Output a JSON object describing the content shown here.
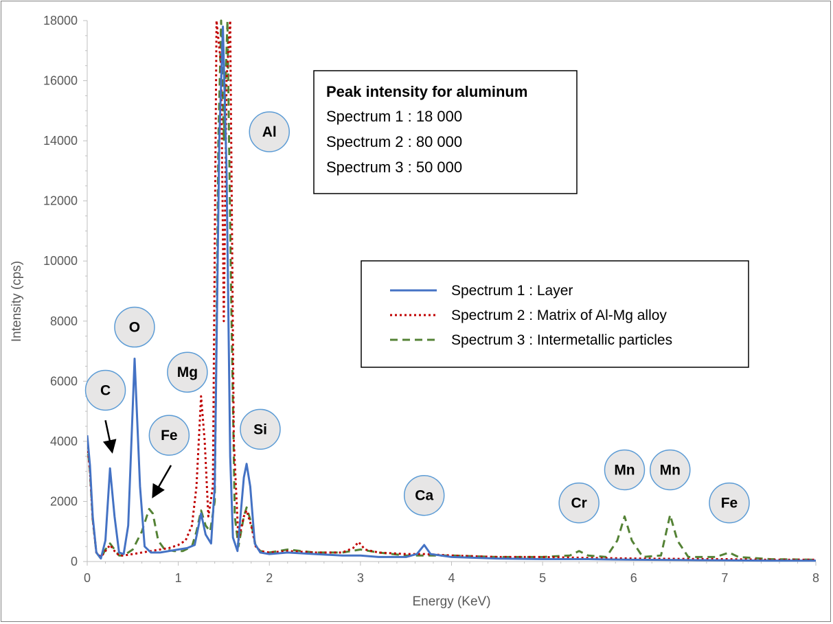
{
  "chart_data": {
    "type": "line",
    "title": "",
    "xlabel": "Energy (KeV)",
    "ylabel": "Intensity (cps)",
    "xlim": [
      0,
      8
    ],
    "ylim": [
      0,
      18000
    ],
    "x_ticks": [
      "0",
      "1",
      "2",
      "3",
      "4",
      "5",
      "6",
      "7",
      "8"
    ],
    "y_ticks": [
      "0",
      "2000",
      "4000",
      "6000",
      "8000",
      "10000",
      "12000",
      "14000",
      "16000",
      "18000"
    ],
    "grid": false,
    "legend_position": "right",
    "series": [
      {
        "name": "Spectrum 1 : Layer",
        "color": "#4472C4",
        "style": "solid",
        "points": [
          [
            0,
            4200
          ],
          [
            0.03,
            3200
          ],
          [
            0.06,
            1500
          ],
          [
            0.1,
            300
          ],
          [
            0.15,
            100
          ],
          [
            0.2,
            700
          ],
          [
            0.25,
            3100
          ],
          [
            0.3,
            1500
          ],
          [
            0.35,
            300
          ],
          [
            0.4,
            250
          ],
          [
            0.45,
            1200
          ],
          [
            0.52,
            6750
          ],
          [
            0.58,
            2500
          ],
          [
            0.63,
            500
          ],
          [
            0.7,
            300
          ],
          [
            0.8,
            300
          ],
          [
            0.9,
            350
          ],
          [
            1.0,
            400
          ],
          [
            1.1,
            450
          ],
          [
            1.18,
            550
          ],
          [
            1.25,
            1600
          ],
          [
            1.3,
            900
          ],
          [
            1.36,
            600
          ],
          [
            1.4,
            2500
          ],
          [
            1.45,
            14000
          ],
          [
            1.49,
            17800
          ],
          [
            1.53,
            13000
          ],
          [
            1.57,
            3500
          ],
          [
            1.6,
            800
          ],
          [
            1.65,
            350
          ],
          [
            1.72,
            2800
          ],
          [
            1.75,
            3250
          ],
          [
            1.79,
            2500
          ],
          [
            1.84,
            600
          ],
          [
            1.9,
            300
          ],
          [
            2.0,
            250
          ],
          [
            2.2,
            300
          ],
          [
            2.5,
            250
          ],
          [
            2.8,
            200
          ],
          [
            3.0,
            200
          ],
          [
            3.2,
            150
          ],
          [
            3.5,
            150
          ],
          [
            3.62,
            250
          ],
          [
            3.7,
            550
          ],
          [
            3.77,
            250
          ],
          [
            4.0,
            150
          ],
          [
            4.5,
            100
          ],
          [
            5.0,
            80
          ],
          [
            5.5,
            80
          ],
          [
            6.0,
            60
          ],
          [
            6.5,
            50
          ],
          [
            7.0,
            40
          ],
          [
            7.5,
            30
          ],
          [
            8.0,
            30
          ]
        ]
      },
      {
        "name": "Spectrum 2 : Matrix of Al-Mg alloy",
        "color": "#C00000",
        "style": "dotted",
        "points": [
          [
            0,
            4000
          ],
          [
            0.03,
            3000
          ],
          [
            0.06,
            1400
          ],
          [
            0.1,
            300
          ],
          [
            0.15,
            150
          ],
          [
            0.2,
            350
          ],
          [
            0.25,
            550
          ],
          [
            0.3,
            350
          ],
          [
            0.35,
            200
          ],
          [
            0.4,
            200
          ],
          [
            0.5,
            250
          ],
          [
            0.6,
            300
          ],
          [
            0.7,
            350
          ],
          [
            0.8,
            400
          ],
          [
            0.9,
            450
          ],
          [
            1.0,
            550
          ],
          [
            1.08,
            700
          ],
          [
            1.15,
            1200
          ],
          [
            1.2,
            2500
          ],
          [
            1.25,
            5500
          ],
          [
            1.29,
            4000
          ],
          [
            1.33,
            1500
          ],
          [
            1.38,
            2500
          ],
          [
            1.42,
            18000
          ],
          [
            1.47,
            16500
          ],
          [
            1.5,
            8000
          ],
          [
            1.53,
            16000
          ],
          [
            1.57,
            18000
          ],
          [
            1.61,
            4000
          ],
          [
            1.66,
            700
          ],
          [
            1.72,
            1500
          ],
          [
            1.75,
            1700
          ],
          [
            1.8,
            1200
          ],
          [
            1.85,
            500
          ],
          [
            1.9,
            350
          ],
          [
            2.0,
            300
          ],
          [
            2.2,
            350
          ],
          [
            2.5,
            300
          ],
          [
            2.8,
            300
          ],
          [
            2.92,
            450
          ],
          [
            2.98,
            650
          ],
          [
            3.05,
            400
          ],
          [
            3.2,
            300
          ],
          [
            3.5,
            250
          ],
          [
            3.7,
            250
          ],
          [
            4.0,
            200
          ],
          [
            4.5,
            150
          ],
          [
            5.0,
            150
          ],
          [
            5.5,
            120
          ],
          [
            6.0,
            100
          ],
          [
            6.5,
            90
          ],
          [
            7.0,
            80
          ],
          [
            7.5,
            60
          ],
          [
            8.0,
            60
          ]
        ]
      },
      {
        "name": "Spectrum 3 : Intermetallic particles",
        "color": "#548235",
        "style": "dashed",
        "points": [
          [
            0,
            4000
          ],
          [
            0.03,
            3000
          ],
          [
            0.06,
            1400
          ],
          [
            0.1,
            300
          ],
          [
            0.15,
            100
          ],
          [
            0.2,
            400
          ],
          [
            0.25,
            600
          ],
          [
            0.3,
            400
          ],
          [
            0.35,
            200
          ],
          [
            0.4,
            200
          ],
          [
            0.5,
            400
          ],
          [
            0.6,
            1000
          ],
          [
            0.68,
            1750
          ],
          [
            0.72,
            1600
          ],
          [
            0.78,
            700
          ],
          [
            0.85,
            400
          ],
          [
            0.95,
            350
          ],
          [
            1.05,
            350
          ],
          [
            1.15,
            500
          ],
          [
            1.2,
            1000
          ],
          [
            1.25,
            1700
          ],
          [
            1.3,
            1200
          ],
          [
            1.35,
            1000
          ],
          [
            1.4,
            2000
          ],
          [
            1.44,
            14000
          ],
          [
            1.47,
            18000
          ],
          [
            1.5,
            14000
          ],
          [
            1.54,
            18000
          ],
          [
            1.58,
            9000
          ],
          [
            1.62,
            1500
          ],
          [
            1.66,
            500
          ],
          [
            1.72,
            1500
          ],
          [
            1.75,
            1800
          ],
          [
            1.8,
            1300
          ],
          [
            1.85,
            500
          ],
          [
            1.9,
            350
          ],
          [
            2.0,
            300
          ],
          [
            2.2,
            400
          ],
          [
            2.5,
            300
          ],
          [
            2.8,
            300
          ],
          [
            3.0,
            400
          ],
          [
            3.2,
            300
          ],
          [
            3.5,
            200
          ],
          [
            4.0,
            200
          ],
          [
            4.5,
            150
          ],
          [
            5.0,
            150
          ],
          [
            5.3,
            200
          ],
          [
            5.4,
            350
          ],
          [
            5.5,
            200
          ],
          [
            5.7,
            150
          ],
          [
            5.82,
            700
          ],
          [
            5.9,
            1500
          ],
          [
            5.98,
            700
          ],
          [
            6.1,
            150
          ],
          [
            6.3,
            200
          ],
          [
            6.4,
            1550
          ],
          [
            6.48,
            700
          ],
          [
            6.6,
            150
          ],
          [
            6.9,
            150
          ],
          [
            7.05,
            300
          ],
          [
            7.15,
            150
          ],
          [
            7.5,
            80
          ],
          [
            8.0,
            60
          ]
        ]
      }
    ],
    "annotations": [
      {
        "label": "C",
        "x": 0.2,
        "y": 5700
      },
      {
        "label": "O",
        "x": 0.52,
        "y": 7800
      },
      {
        "label": "Mg",
        "x": 1.1,
        "y": 6300
      },
      {
        "label": "Fe",
        "x": 0.9,
        "y": 4200
      },
      {
        "label": "Al",
        "x": 2.0,
        "y": 14300
      },
      {
        "label": "Si",
        "x": 1.9,
        "y": 4400
      },
      {
        "label": "Ca",
        "x": 3.7,
        "y": 2200
      },
      {
        "label": "Cr",
        "x": 5.4,
        "y": 1950
      },
      {
        "label": "Mn",
        "x": 5.9,
        "y": 3050
      },
      {
        "label": "Mn",
        "x": 6.4,
        "y": 3050
      },
      {
        "label": "Fe",
        "x": 7.05,
        "y": 1950
      }
    ],
    "arrows": [
      {
        "from": [
          0.2,
          4700
        ],
        "to": [
          0.27,
          3700
        ]
      },
      {
        "from": [
          0.92,
          3200
        ],
        "to": [
          0.73,
          2200
        ]
      }
    ],
    "info_box": {
      "title": "Peak intensity for aluminum",
      "lines": [
        "Spectrum 1 : 18 000",
        "Spectrum 2 : 80 000",
        "Spectrum 3 : 50 000"
      ]
    }
  }
}
